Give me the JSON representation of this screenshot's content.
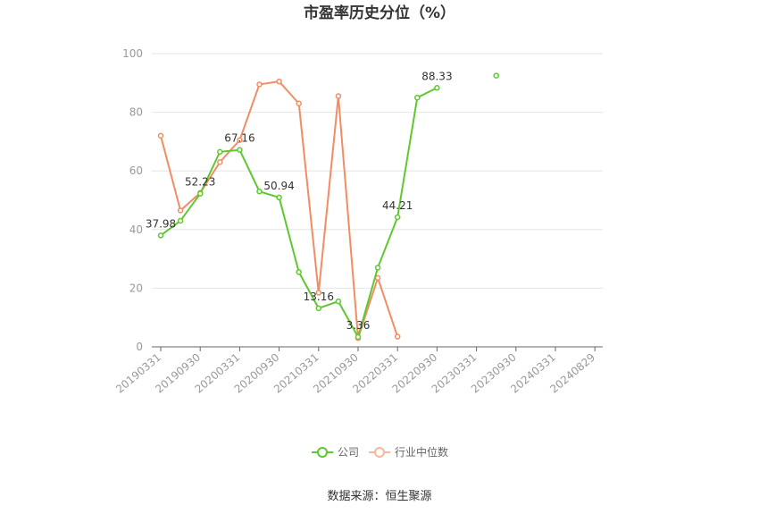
{
  "chart_data": {
    "type": "line",
    "title": "市盈率历史分位（%）",
    "source": "数据来源：恒生聚源",
    "ylim": [
      0,
      100
    ],
    "yticks": [
      0,
      20,
      40,
      60,
      80,
      100
    ],
    "xticks": [
      "20190331",
      "20190930",
      "20200331",
      "20200930",
      "20210331",
      "20210930",
      "20220331",
      "20220930",
      "20230331",
      "20230930",
      "20240331",
      "20240829"
    ],
    "grid": true,
    "legend_position": "bottom",
    "series": [
      {
        "name": "公司",
        "color": "#5fc82e",
        "x": [
          0,
          0.5,
          1,
          1.5,
          2,
          2.5,
          3,
          3.5,
          4,
          4.5,
          5,
          5.5,
          6,
          6.5,
          7,
          8.5
        ],
        "values": [
          37.98,
          43,
          52.23,
          66.5,
          67.16,
          53,
          50.94,
          25.5,
          13.16,
          15.5,
          3.36,
          27,
          44.21,
          85,
          88.33,
          92.5
        ],
        "segments": [
          [
            0,
            14
          ],
          [
            15,
            15
          ]
        ]
      },
      {
        "name": "行业中位数",
        "color": "#f28c63",
        "x": [
          0,
          0.5,
          1,
          1.5,
          2,
          2.5,
          3,
          3.5,
          4,
          4.5,
          5,
          5.5,
          6
        ],
        "values": [
          72,
          46.5,
          52.5,
          63,
          70.5,
          89.5,
          90.5,
          83,
          18.5,
          85.5,
          3,
          23.5,
          3.5
        ],
        "segments": [
          [
            0,
            12
          ]
        ]
      }
    ],
    "data_labels": [
      {
        "series": 0,
        "index": 0,
        "text": "37.98"
      },
      {
        "series": 0,
        "index": 2,
        "text": "52.23"
      },
      {
        "series": 0,
        "index": 4,
        "text": "67.16"
      },
      {
        "series": 0,
        "index": 6,
        "text": "50.94"
      },
      {
        "series": 0,
        "index": 8,
        "text": "13.16"
      },
      {
        "series": 0,
        "index": 10,
        "text": "3.36"
      },
      {
        "series": 0,
        "index": 12,
        "text": "44.21"
      },
      {
        "series": 0,
        "index": 14,
        "text": "88.33"
      }
    ]
  }
}
